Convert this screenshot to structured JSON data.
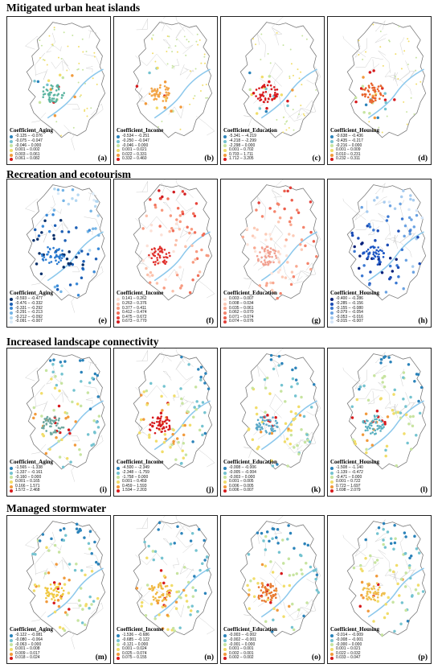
{
  "sections": [
    {
      "title": "Mitigated urban heat islands",
      "style": "mixed",
      "panels": [
        {
          "label": "(a)",
          "legend_title": "Coefficient_Aging",
          "classes": [
            "-0.125 – -0.076",
            "-0.075 – -0.047",
            "-0.046 – 0.000",
            "0.001 – 0.002",
            "0.003 – 0.061",
            "0.061 – 0.082"
          ],
          "colors": [
            "#2b83ba",
            "#74c3d0",
            "#c7e4a0",
            "#f1dd6a",
            "#f19a3c",
            "#d7191c"
          ],
          "cluster_color": "#5ab4a0",
          "extent": "small"
        },
        {
          "label": "(b)",
          "legend_title": "Coefficient_Income",
          "classes": [
            "-0.534 – -0.251",
            "-0.250 – -0.047",
            "-0.046 – 0.000",
            "0.001 – 0.021",
            "0.022 – 0.331",
            "0.332 – 0.460"
          ],
          "colors": [
            "#2b83ba",
            "#74c3d0",
            "#c7e4a0",
            "#f1dd6a",
            "#f19a3c",
            "#d7191c"
          ],
          "cluster_color": "#f3a548",
          "extent": "small"
        },
        {
          "label": "(c)",
          "legend_title": "Coefficient_Education",
          "classes": [
            "-5.341 – -4.219",
            "-4.218 – -2.299",
            "-2.298 – 0.000",
            "0.001 – 0.702",
            "0.703 – 1.711",
            "1.712 – 3.205"
          ],
          "colors": [
            "#2b83ba",
            "#74c3d0",
            "#c7e4a0",
            "#f1dd6a",
            "#f19a3c",
            "#d7191c"
          ],
          "cluster_color": "#d7191c",
          "extent": "small"
        },
        {
          "label": "(d)",
          "legend_title": "Coefficient_Housing",
          "classes": [
            "-0.638 – -0.436",
            "-0.435 – -0.217",
            "-0.216 – 0.000",
            "0.001 – 0.009",
            "0.010 – 0.231",
            "0.232 – 0.311"
          ],
          "colors": [
            "#2b83ba",
            "#74c3d0",
            "#c7e4a0",
            "#f1dd6a",
            "#f19a3c",
            "#d7191c"
          ],
          "cluster_color": "#e8622b",
          "extent": "small"
        }
      ]
    },
    {
      "title": "Recreation and ecotourism",
      "style": "mono",
      "panels": [
        {
          "label": "(e)",
          "legend_title": "Coefficient_Aging",
          "classes": [
            "-0.593 – -0.477",
            "-0.476 – -0.332",
            "-0.331 – -0.292",
            "-0.291 – -0.213",
            "-0.212 – -0.092",
            "-0.091 – -0.007"
          ],
          "colors": [
            "#08306b",
            "#1c5fb5",
            "#3a8ad8",
            "#74b4e6",
            "#b4d8f2",
            "#dcebf7"
          ],
          "cluster_color": "#2b7bd0",
          "extent": "full"
        },
        {
          "label": "(f)",
          "legend_title": "Coefficient_Income",
          "classes": [
            "0.141 – 0.262",
            "0.263 – 0.376",
            "0.377 – 0.411",
            "0.412 – 0.474",
            "0.475 – 0.672",
            "0.673 – 0.770"
          ],
          "colors": [
            "#fce0d6",
            "#fbc0aa",
            "#f79a80",
            "#f1705a",
            "#e8433a",
            "#d01c20"
          ],
          "cluster_color": "#e0302c",
          "extent": "full"
        },
        {
          "label": "(g)",
          "legend_title": "Coefficient_Education",
          "classes": [
            "0.003 – 0.007",
            "0.008 – 0.034",
            "0.035 – 0.061",
            "0.062 – 0.070",
            "0.071 – 0.074",
            "0.074 – 0.076"
          ],
          "colors": [
            "#fde4da",
            "#fccab6",
            "#f9a890",
            "#f4846c",
            "#ec5f4c",
            "#e2403a"
          ],
          "cluster_color": "#f2a090",
          "extent": "full"
        },
        {
          "label": "(h)",
          "legend_title": "Coefficient_Housing",
          "classes": [
            "-0.400 – -0.286",
            "-0.285 – -0.156",
            "-0.155 – -0.080",
            "-0.079 – -0.054",
            "-0.053 – -0.016",
            "-0.015 – -0.007"
          ],
          "colors": [
            "#08217a",
            "#1a4bb5",
            "#3a78d2",
            "#6aa2e2",
            "#a6cbef",
            "#d6e6f8"
          ],
          "cluster_color": "#1d56c4",
          "extent": "full"
        }
      ]
    },
    {
      "title": "Increased landscape connectivity",
      "style": "mixed",
      "panels": [
        {
          "label": "(i)",
          "legend_title": "Coefficient_Aging",
          "classes": [
            "-1.565 – -1.338",
            "-1.337 – -0.161",
            "-0.160 – 0.000",
            "0.001 – 0.165",
            "0.166 – 1.571",
            "1.572 – 2.468"
          ],
          "colors": [
            "#2b83ba",
            "#74c3d0",
            "#c7e4a0",
            "#f1dd6a",
            "#f19a3c",
            "#d7191c"
          ],
          "cluster_color": "#6fa8a0",
          "extent": "full"
        },
        {
          "label": "(j)",
          "legend_title": "Coefficient_Income",
          "classes": [
            "-4.500 – -2.349",
            "-2.348 – -1.759",
            "-1.758 – 0.000",
            "0.001 – 0.459",
            "0.459 – 1.593",
            "1.594 – 2.203"
          ],
          "colors": [
            "#2b83ba",
            "#74c3d0",
            "#c7e4a0",
            "#f1dd6a",
            "#f19a3c",
            "#d7191c"
          ],
          "cluster_color": "#d7191c",
          "extent": "full"
        },
        {
          "label": "(k)",
          "legend_title": "Coefficient_Education",
          "classes": [
            "-0.008 – -0.006",
            "-0.005 – -0.004",
            "-0.003 – 0.000",
            "0.001 – 0.005",
            "0.006 – 0.005",
            "0.006 – 0.007"
          ],
          "colors": [
            "#2b83ba",
            "#74c3d0",
            "#c7e4a0",
            "#f1dd6a",
            "#f19a3c",
            "#d7191c"
          ],
          "cluster_color": "#5aa8c8",
          "extent": "full"
        },
        {
          "label": "(l)",
          "legend_title": "Coefficient_Housing",
          "classes": [
            "-1.508 – -1.140",
            "-1.139 – -0.472",
            "-0.471 – 0.000",
            "0.001 – 0.722",
            "0.723 – 1.697",
            "1.698 – 2.079"
          ],
          "colors": [
            "#2b83ba",
            "#74c3d0",
            "#c7e4a0",
            "#f1dd6a",
            "#f19a3c",
            "#d7191c"
          ],
          "cluster_color": "#5ab0c0",
          "extent": "full"
        }
      ]
    },
    {
      "title": "Managed stormwater",
      "style": "mixed",
      "panels": [
        {
          "label": "(m)",
          "legend_title": "Coefficient_Aging",
          "classes": [
            "-0.122 – -0.081",
            "-0.080 – -0.064",
            "-0.063 – 0.000",
            "0.001 – 0.008",
            "0.009 – 0.017",
            "0.018 – 0.024"
          ],
          "colors": [
            "#2b83ba",
            "#74c3d0",
            "#c7e4a0",
            "#f1dd6a",
            "#f19a3c",
            "#d7191c"
          ],
          "cluster_color": "#f0c840",
          "extent": "full"
        },
        {
          "label": "(n)",
          "legend_title": "Coefficient_Income",
          "classes": [
            "-1.536 – -0.686",
            "-0.685 – -0.122",
            "-0.121 – 0.000",
            "0.001 – 0.024",
            "0.025 – 0.074",
            "0.075 – 0.155"
          ],
          "colors": [
            "#2b83ba",
            "#74c3d0",
            "#c7e4a0",
            "#f1dd6a",
            "#f19a3c",
            "#d7191c"
          ],
          "cluster_color": "#f0b840",
          "extent": "full"
        },
        {
          "label": "(o)",
          "legend_title": "Coefficient_Education",
          "classes": [
            "-0.003 – -0.002",
            "-0.002 – -0.001",
            "-0.001 – 0.000",
            "0.001 – 0.001",
            "0.002 – 0.001",
            "0.002 – 0.002"
          ],
          "colors": [
            "#2b83ba",
            "#74c3d0",
            "#c7e4a0",
            "#f1dd6a",
            "#f19a3c",
            "#d7191c"
          ],
          "cluster_color": "#e87a30",
          "extent": "full"
        },
        {
          "label": "(p)",
          "legend_title": "Coefficient_Housing",
          "classes": [
            "-0.014 – -0.009",
            "-0.008 – -0.001",
            "-0.000 – 0.000",
            "0.001 – 0.021",
            "0.022 – 0.032",
            "0.033 – 0.047"
          ],
          "colors": [
            "#2b83ba",
            "#74c3d0",
            "#c7e4a0",
            "#f1dd6a",
            "#f19a3c",
            "#d7191c"
          ],
          "cluster_color": "#f0c050",
          "extent": "full"
        }
      ]
    }
  ]
}
